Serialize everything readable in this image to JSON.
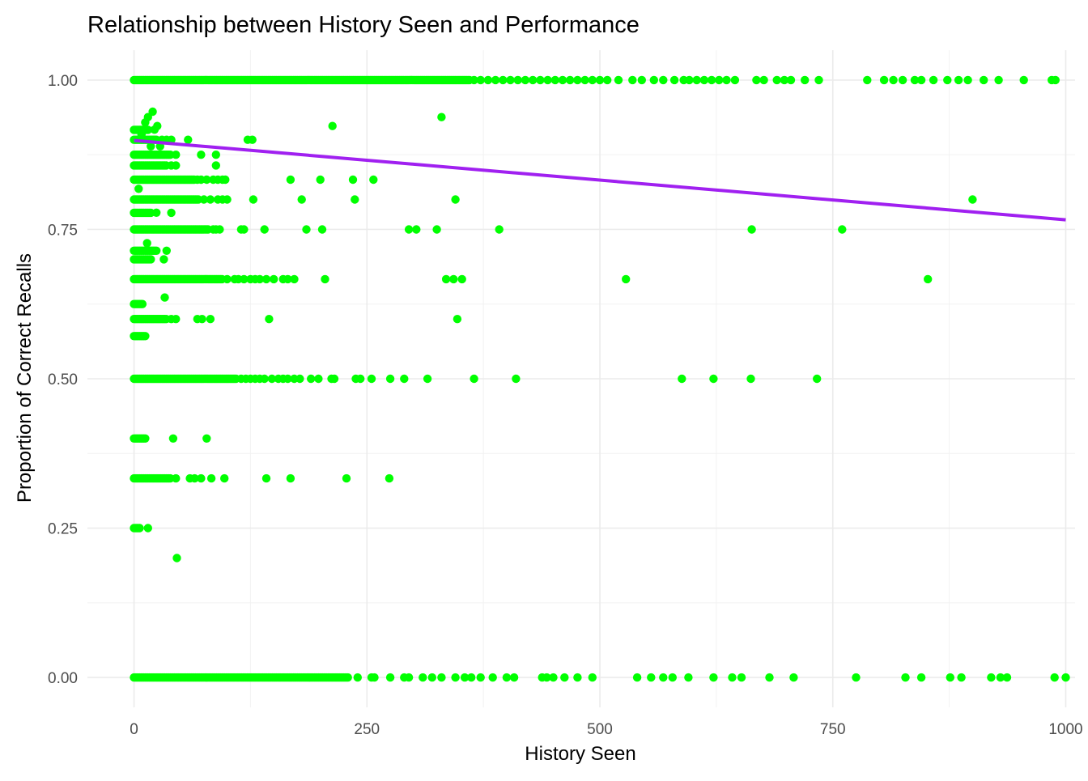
{
  "chart_data": {
    "type": "scatter",
    "title": "Relationship between History Seen and Performance",
    "xlabel": "History Seen",
    "ylabel": "Proportion of Correct Recalls",
    "xlim": [
      -50,
      1010
    ],
    "ylim": [
      -0.05,
      1.05
    ],
    "x_ticks": [
      0,
      250,
      500,
      750,
      1000
    ],
    "x_tick_labels": [
      "0",
      "250",
      "500",
      "750",
      "1000"
    ],
    "y_ticks": [
      0,
      0.25,
      0.5,
      0.75,
      1.0
    ],
    "y_tick_labels": [
      "0.00",
      "0.25",
      "0.50",
      "0.75",
      "1.00"
    ],
    "grid": true,
    "point_color": "#00ff00",
    "trend_color": "#a020f0",
    "trend_line": {
      "x": [
        0,
        1000
      ],
      "y": [
        0.899,
        0.766
      ]
    },
    "series": [
      {
        "rows": [
          {
            "y": 1.0,
            "dense_to": 360,
            "x": [
              365,
              372,
              380,
              388,
              396,
              404,
              412,
              420,
              428,
              436,
              444,
              452,
              460,
              468,
              476,
              484,
              492,
              500,
              508,
              520,
              535,
              545,
              558,
              568,
              580,
              590,
              596,
              604,
              612,
              620,
              628,
              636,
              645,
              668,
              676,
              690,
              698,
              705,
              720,
              735,
              787,
              805,
              815,
              825,
              838,
              845,
              858,
              873,
              885,
              895,
              912,
              928,
              955,
              985,
              989
            ]
          },
          {
            "y": 0.0,
            "dense_to": 230,
            "x": [
              240,
              255,
              258,
              275,
              290,
              295,
              310,
              320,
              330,
              345,
              355,
              362,
              372,
              385,
              400,
              408,
              438,
              443,
              450,
              462,
              476,
              492,
              540,
              555,
              568,
              578,
              595,
              622,
              642,
              652,
              682,
              708,
              775,
              828,
              845,
              876,
              888,
              920,
              930,
              937,
              988,
              1000
            ]
          },
          {
            "y": 0.5,
            "dense_to": 110,
            "x": [
              115,
              120,
              125,
              130,
              135,
              140,
              148,
              155,
              160,
              165,
              172,
              178,
              190,
              198,
              212,
              215,
              238,
              243,
              255,
              275,
              290,
              315,
              365,
              410,
              588,
              622,
              662,
              733
            ]
          },
          {
            "y": 0.75,
            "dense_to": 80,
            "x": [
              85,
              88,
              92,
              115,
              118,
              140,
              185,
              202,
              295,
              303,
              325,
              392,
              663,
              760
            ]
          },
          {
            "y": 0.8333,
            "dense_to": 65,
            "x": [
              68,
              72,
              78,
              85,
              90,
              95,
              98,
              168,
              200,
              235,
              257
            ]
          },
          {
            "y": 0.8,
            "dense_to": 70,
            "x": [
              75,
              82,
              90,
              95,
              100,
              128,
              180,
              237,
              345,
              900
            ]
          },
          {
            "y": 0.6667,
            "dense_to": 95,
            "x": [
              100,
              108,
              112,
              118,
              125,
              130,
              135,
              142,
              150,
              160,
              165,
              172,
              205,
              335,
              343,
              352,
              528,
              852
            ]
          },
          {
            "y": 0.3333,
            "dense_to": 40,
            "x": [
              45,
              60,
              65,
              72,
              83,
              97,
              142,
              168,
              228,
              274
            ]
          },
          {
            "y": 0.6,
            "dense_to": 35,
            "x": [
              40,
              45,
              68,
              73,
              82,
              145,
              347
            ]
          },
          {
            "y": 0.8571,
            "dense_to": 35,
            "x": [
              40,
              45,
              88
            ]
          },
          {
            "y": 0.875,
            "dense_to": 40,
            "x": [
              45,
              72,
              88
            ]
          },
          {
            "y": 0.9,
            "dense_to": 25,
            "x": [
              30,
              35,
              40,
              58,
              122,
              127
            ]
          },
          {
            "y": 0.7143,
            "dense_to": 25,
            "x": [
              35
            ]
          },
          {
            "y": 0.4,
            "dense_to": 12,
            "x": [
              42,
              78
            ]
          },
          {
            "y": 0.25,
            "dense_to": 6,
            "x": [
              15
            ]
          },
          {
            "y": 0.625,
            "dense_to": 10,
            "x": []
          },
          {
            "y": 0.7778,
            "dense_to": 18,
            "x": [
              40
            ]
          },
          {
            "y": 0.7,
            "dense_to": 18,
            "x": [
              32
            ]
          },
          {
            "y": 0.5714,
            "dense_to": 12,
            "x": []
          },
          {
            "y": 0.9167,
            "dense_to": 15,
            "x": []
          }
        ],
        "points": [
          {
            "x": 213,
            "y": 0.923
          },
          {
            "x": 330,
            "y": 0.938
          },
          {
            "x": 20,
            "y": 0.947
          },
          {
            "x": 15,
            "y": 0.938
          },
          {
            "x": 12,
            "y": 0.929
          },
          {
            "x": 25,
            "y": 0.923
          },
          {
            "x": 8,
            "y": 0.909
          },
          {
            "x": 18,
            "y": 0.889
          },
          {
            "x": 22,
            "y": 0.917
          },
          {
            "x": 28,
            "y": 0.889
          },
          {
            "x": 33,
            "y": 0.636
          },
          {
            "x": 46,
            "y": 0.2
          },
          {
            "x": 5,
            "y": 0.818
          },
          {
            "x": 14,
            "y": 0.727
          },
          {
            "x": 24,
            "y": 0.778
          }
        ]
      }
    ]
  }
}
